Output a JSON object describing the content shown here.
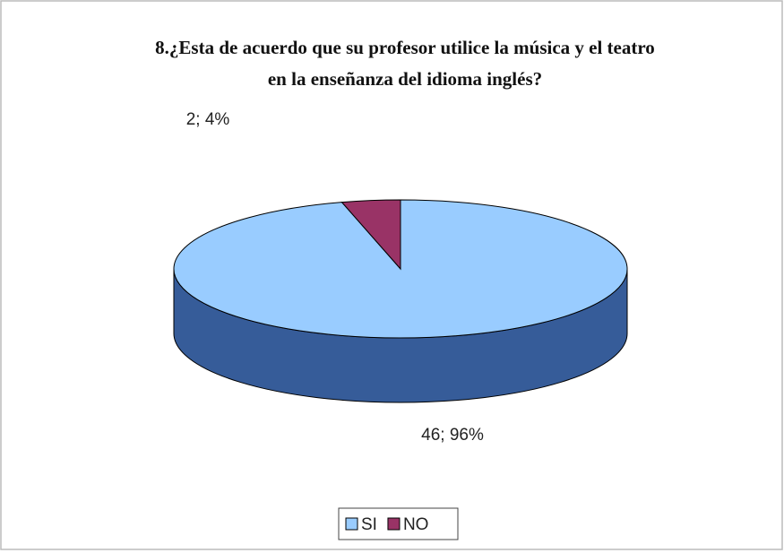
{
  "chart_data": {
    "type": "pie",
    "title": [
      "8.¿Esta de acuerdo que su profesor utilice la música y el teatro",
      "en la enseñanza del idioma inglés?"
    ],
    "categories": [
      "SI",
      "NO"
    ],
    "values": [
      46,
      2
    ],
    "value_labels": [
      "46; 96%",
      "2; 4%"
    ],
    "colors": [
      "#99ccff",
      "#993366"
    ],
    "legend": "bottom",
    "three_d": true
  }
}
